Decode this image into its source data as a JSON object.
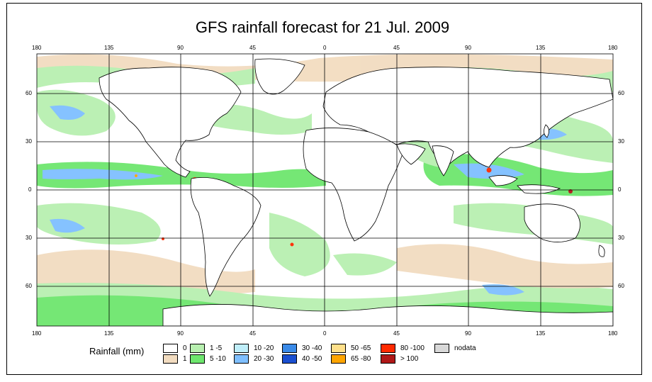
{
  "title": "GFS rainfall forecast for 21 Jul. 2009",
  "lon_ticks": [
    "180",
    "135",
    "90",
    "45",
    "0",
    "45",
    "90",
    "135",
    "180"
  ],
  "lat_ticks": [
    "60",
    "30",
    "0",
    "30",
    "60"
  ],
  "legend": {
    "title": "Rainfall (mm)",
    "items": [
      {
        "label": "0",
        "color": "#ffffff"
      },
      {
        "label": "1",
        "color": "#f2dcc0"
      },
      {
        "label": "1 -5",
        "color": "#b8f0b0"
      },
      {
        "label": "5 -10",
        "color": "#6ee66e"
      },
      {
        "label": "10 -20",
        "color": "#bfeefa"
      },
      {
        "label": "20 -30",
        "color": "#7fbfff"
      },
      {
        "label": "30 -40",
        "color": "#3a8ae8"
      },
      {
        "label": "40 -50",
        "color": "#1a4fd0"
      },
      {
        "label": "50 -65",
        "color": "#ffe08a"
      },
      {
        "label": "65 -80",
        "color": "#ffa500"
      },
      {
        "label": "80 -100",
        "color": "#ff2a00"
      },
      {
        "label": "> 100",
        "color": "#b01818"
      },
      {
        "label": "nodata",
        "color": "#d8d8d8"
      }
    ]
  }
}
